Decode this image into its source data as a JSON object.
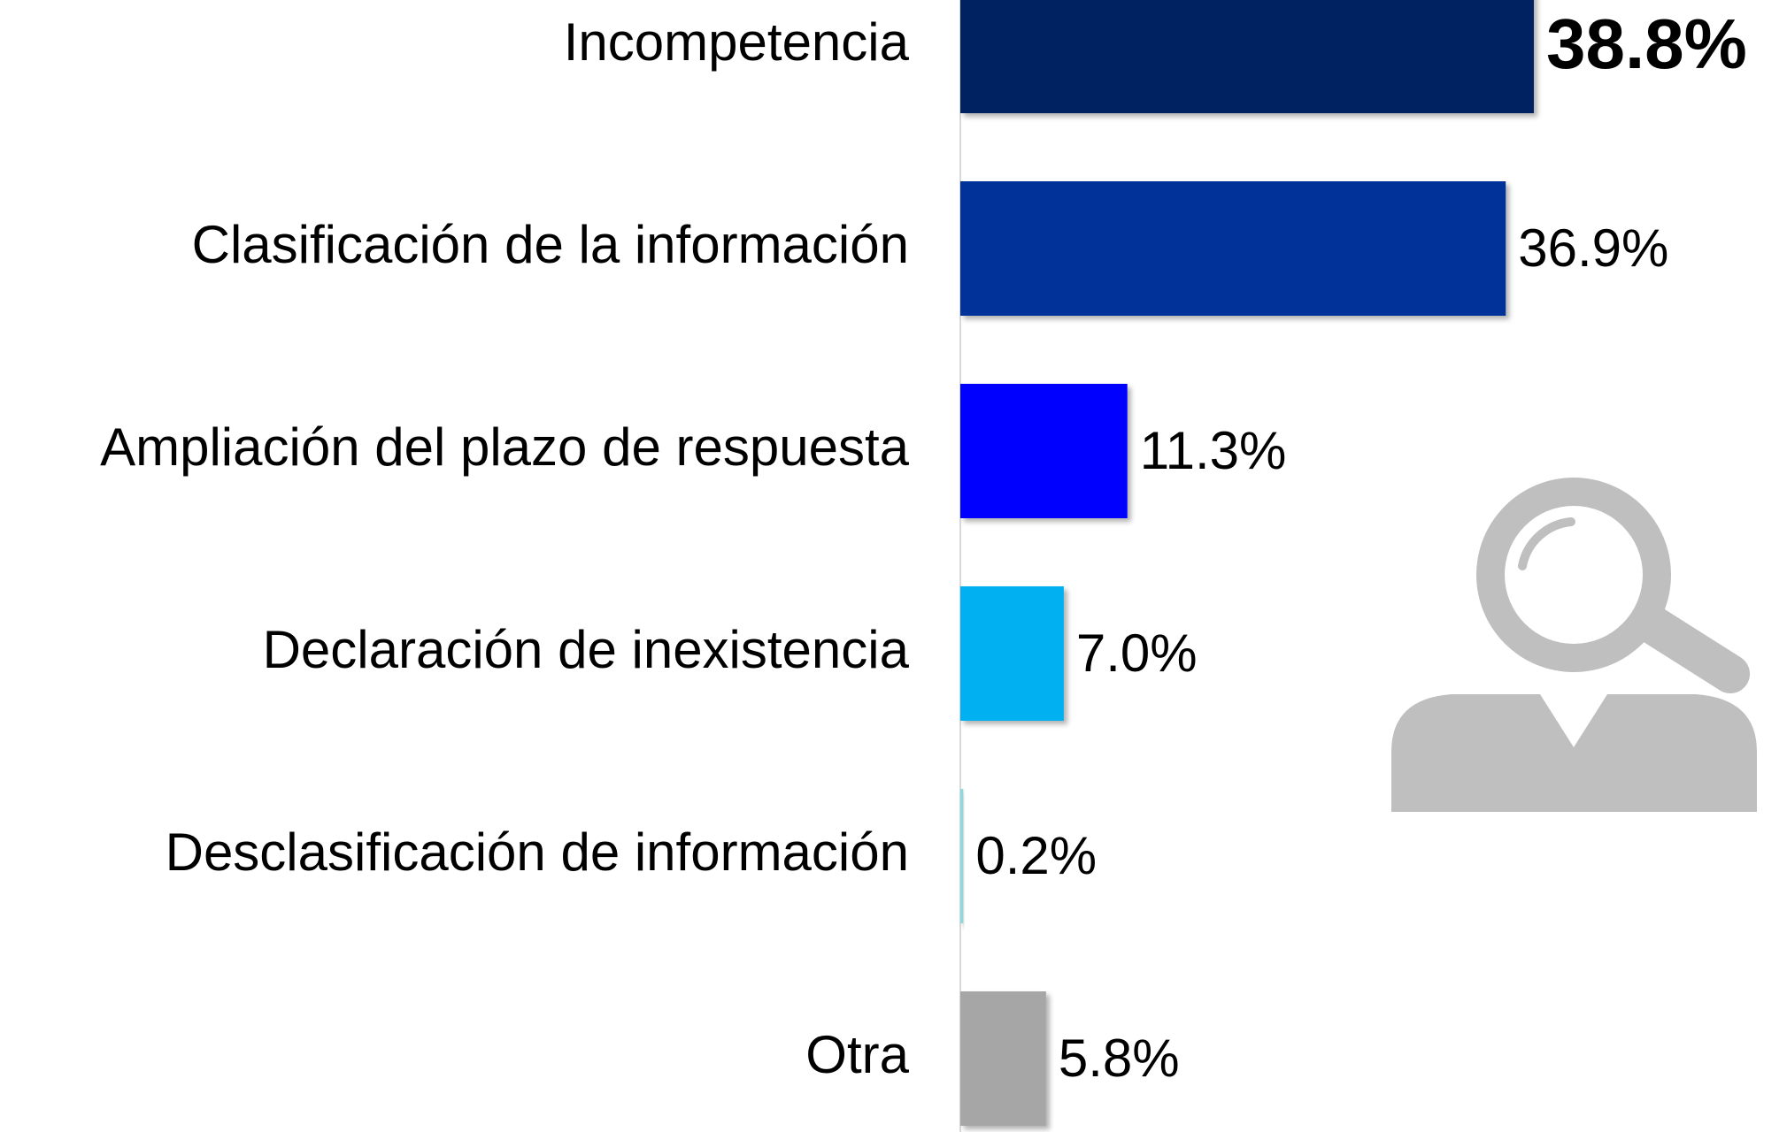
{
  "chart_data": {
    "type": "barh",
    "categories": [
      "Incompetencia",
      "Clasificación de la información",
      "Ampliación del plazo de respuesta",
      "Declaración de inexistencia",
      "Desclasificación de información",
      "Otra"
    ],
    "values": [
      38.8,
      36.9,
      11.3,
      7.0,
      0.2,
      5.8
    ],
    "value_labels": [
      "38.8%",
      "36.9%",
      "11.3%",
      "7.0%",
      "0.2%",
      "5.8%"
    ],
    "colors": [
      "#002060",
      "#003399",
      "#0000ff",
      "#00b0f0",
      "#8fd8e0",
      "#a6a6a6"
    ]
  }
}
